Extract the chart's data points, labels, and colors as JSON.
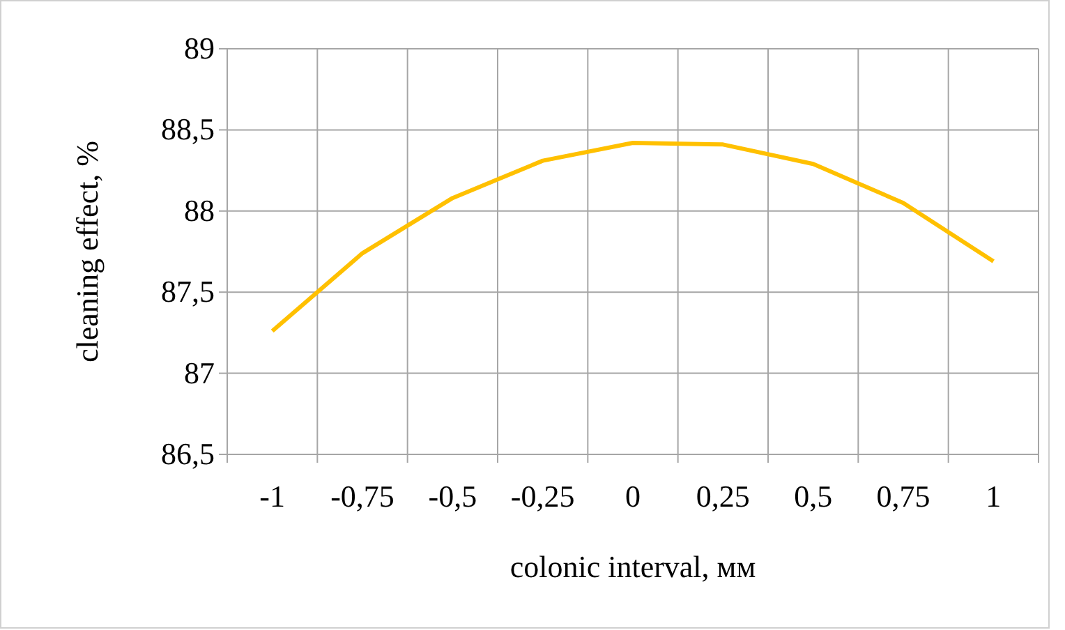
{
  "chart_data": {
    "type": "line",
    "xlabel": "colonic interval, мм",
    "ylabel": "cleaning effect, %",
    "categories": [
      "-1",
      "-0,75",
      "-0,5",
      "-0,25",
      "0",
      "0,25",
      "0,5",
      "0,75",
      "1"
    ],
    "series": [
      {
        "color": "#ffc000",
        "values": [
          87.26,
          87.74,
          88.08,
          88.31,
          88.42,
          88.41,
          88.29,
          88.05,
          87.69
        ]
      }
    ],
    "ylim": [
      86.5,
      89
    ],
    "yticks": [
      {
        "value": 86.5,
        "label": "86,5"
      },
      87,
      {
        "value": 87.5,
        "label": "87,5"
      },
      88,
      {
        "value": 88.5,
        "label": "88,5"
      },
      89
    ],
    "grid": true
  }
}
